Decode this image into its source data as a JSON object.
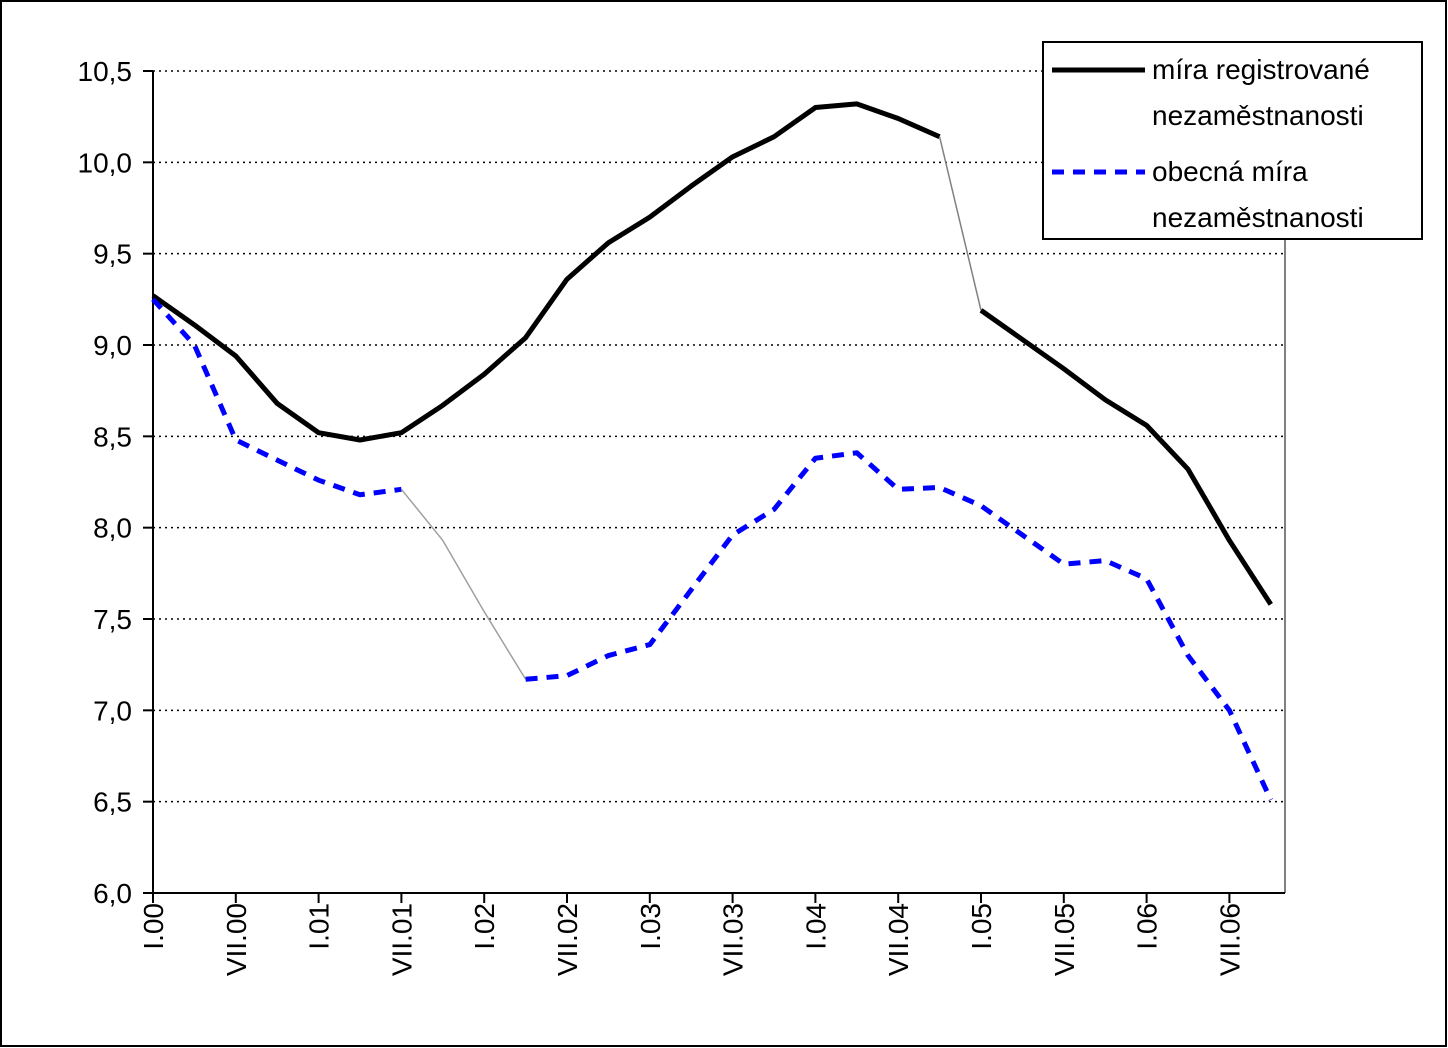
{
  "chart_data": {
    "type": "line",
    "categories": [
      "I.00",
      null,
      "VII.00",
      null,
      "I.01",
      null,
      "VII.01",
      null,
      "I.02",
      null,
      "VII.02",
      null,
      "I.03",
      null,
      "VII.03",
      null,
      "I.04",
      null,
      "VII.04",
      null,
      "I.05",
      null,
      "VII.05",
      null,
      "I.06",
      null,
      "VII.06",
      null
    ],
    "series": [
      {
        "name": "míra registrované nezaměstnanosti",
        "color": "#000000",
        "dash": false,
        "values": [
          9.27,
          9.11,
          8.94,
          8.68,
          8.52,
          8.48,
          8.52,
          8.67,
          8.84,
          9.04,
          9.36,
          9.56,
          9.7,
          9.87,
          10.03,
          10.14,
          10.3,
          10.32,
          10.24,
          10.14,
          9.19,
          9.03,
          8.87,
          8.7,
          8.56,
          8.32,
          7.93,
          7.58
        ],
        "connector": {
          "from": 19,
          "to": 20,
          "color": "#808080"
        }
      },
      {
        "name": "obecná míra nezaměstnanosti",
        "color": "#0000ff",
        "dash": true,
        "values": [
          9.25,
          9.0,
          8.48,
          8.37,
          8.26,
          8.18,
          8.21,
          7.93,
          7.54,
          7.17,
          7.19,
          7.3,
          7.36,
          7.66,
          7.96,
          8.1,
          8.38,
          8.41,
          8.21,
          8.22,
          8.12,
          7.96,
          7.8,
          7.82,
          7.72,
          7.3,
          7.0,
          6.51
        ],
        "connector": {
          "from": 6,
          "to": 9,
          "color": "#a0a0a0"
        }
      }
    ],
    "ylim": [
      6.0,
      10.5
    ],
    "yticks": [
      {
        "value": 6.0,
        "label": "6,0"
      },
      {
        "value": 6.5,
        "label": "6,5"
      },
      {
        "value": 7.0,
        "label": "7,0"
      },
      {
        "value": 7.5,
        "label": "7,5"
      },
      {
        "value": 8.0,
        "label": "8,0"
      },
      {
        "value": 8.5,
        "label": "8,5"
      },
      {
        "value": 9.0,
        "label": "9,0"
      },
      {
        "value": 9.5,
        "label": "9,5"
      },
      {
        "value": 10.0,
        "label": "10,0"
      },
      {
        "value": 10.5,
        "label": "10,5"
      }
    ],
    "grid": true,
    "legend": "top-right"
  }
}
